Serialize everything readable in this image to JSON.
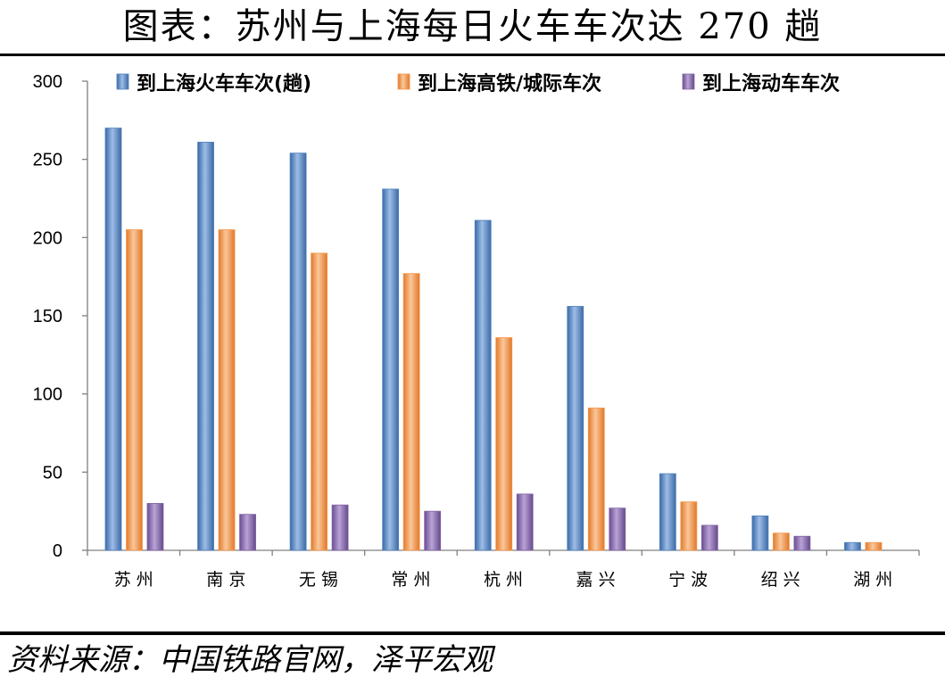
{
  "title": "图表：苏州与上海每日火车车次达 270 趟",
  "source": "资料来源：中国铁路官网，泽平宏观",
  "chart_data": {
    "type": "bar",
    "categories": [
      "苏州",
      "南京",
      "无锡",
      "常州",
      "杭州",
      "嘉兴",
      "宁波",
      "绍兴",
      "湖州"
    ],
    "series": [
      {
        "name": "到上海火车车次(趟)",
        "color": "#4f81bd",
        "values": [
          270,
          261,
          254,
          231,
          211,
          156,
          49,
          22,
          5
        ]
      },
      {
        "name": "到上海高铁/城际车次",
        "color": "#f79646",
        "values": [
          205,
          205,
          190,
          177,
          136,
          91,
          31,
          11,
          5
        ]
      },
      {
        "name": "到上海动车车次",
        "color": "#8064a2",
        "values": [
          30,
          23,
          29,
          25,
          36,
          27,
          16,
          9,
          null
        ]
      }
    ],
    "ylim": [
      0,
      300
    ],
    "yticks": [
      0,
      50,
      100,
      150,
      200,
      250,
      300
    ],
    "grid": false,
    "legend": "top"
  }
}
